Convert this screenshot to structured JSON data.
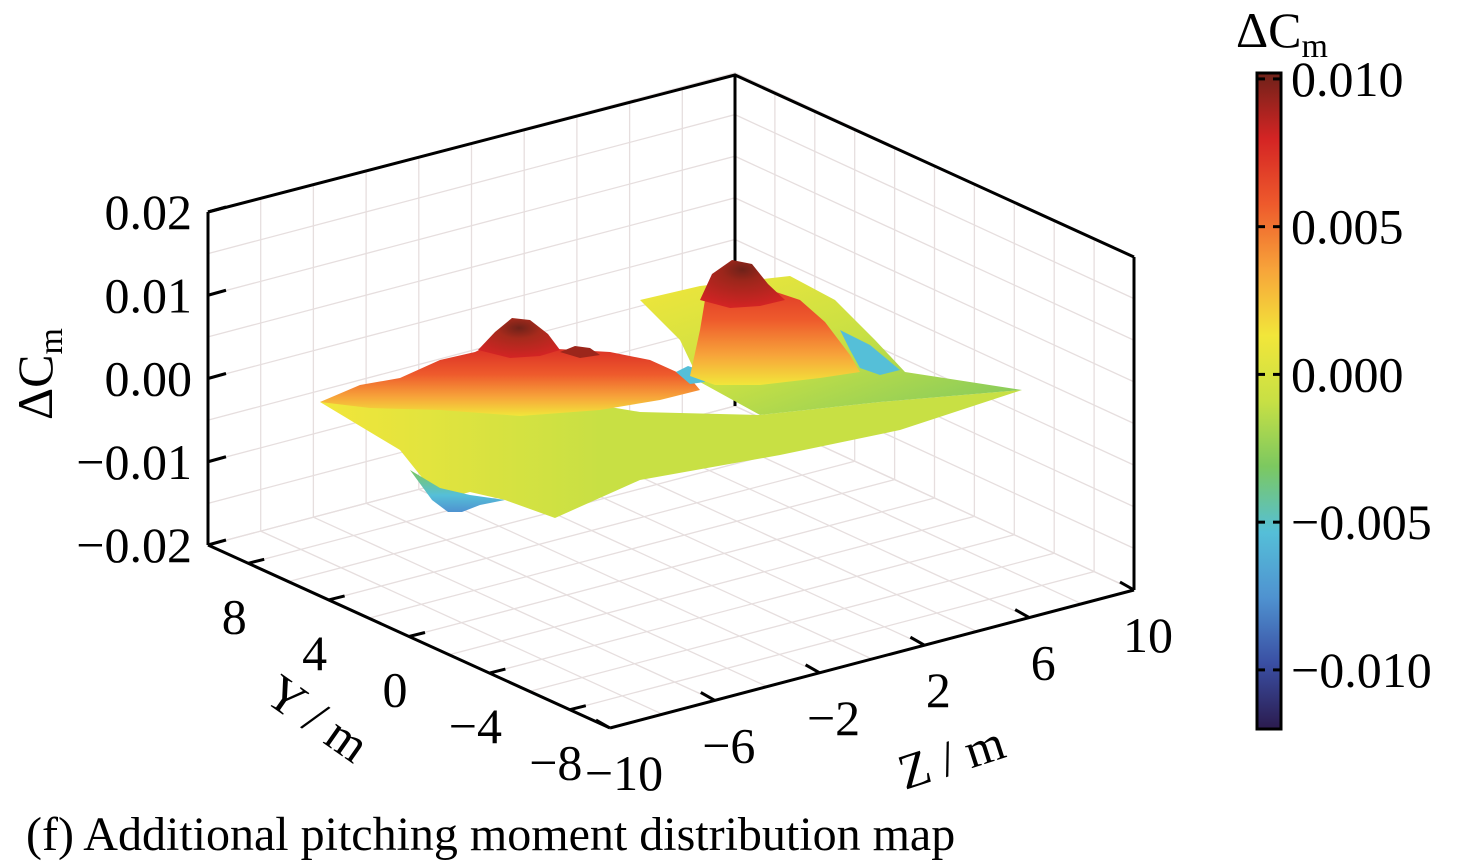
{
  "chart_data": {
    "type": "surface3d",
    "caption": "(f) Additional pitching moment distribution map",
    "z_axis": {
      "title_symbol": "ΔC",
      "title_subscript": "m",
      "ticks": [
        0.02,
        0.01,
        0.0,
        -0.01,
        -0.02
      ],
      "tick_labels": [
        "0.02",
        "0.01",
        "0.00",
        "−0.01",
        "−0.02"
      ],
      "range": [
        -0.02,
        0.02
      ]
    },
    "y_axis": {
      "title": "Y / m",
      "ticks": [
        8,
        4,
        0,
        -4,
        -8
      ],
      "tick_labels": [
        "8",
        "4",
        "0",
        "−4",
        "−8"
      ],
      "range": [
        -10,
        10
      ]
    },
    "x_axis": {
      "title": "Z / m",
      "ticks": [
        -10,
        -6,
        -2,
        2,
        6,
        10
      ],
      "tick_labels": [
        "−10",
        "−6",
        "−2",
        "2",
        "6",
        "10"
      ],
      "range": [
        -10,
        10
      ]
    },
    "colorbar": {
      "title_symbol": "ΔC",
      "title_subscript": "m",
      "range": [
        -0.012,
        0.0102
      ],
      "ticks": [
        0.01,
        0.005,
        0.0,
        -0.005,
        -0.01
      ],
      "tick_labels": [
        "0.010",
        "0.005",
        "0.000",
        "−0.005",
        "−0.010"
      ]
    },
    "colormap": [
      "#2b1b4e",
      "#3a4fa3",
      "#4f92d0",
      "#55bfd8",
      "#7cc860",
      "#c8e044",
      "#f2e63a",
      "#f7a43a",
      "#ee5a2c",
      "#d42424",
      "#6e2219"
    ],
    "surface_samples": [
      {
        "y": 9,
        "z": -10,
        "value": 0.0005
      },
      {
        "y": 6,
        "z": -6,
        "value": 0.008
      },
      {
        "y": 5,
        "z": -4,
        "value": 0.006
      },
      {
        "y": 4,
        "z": 2,
        "value": 0.01
      },
      {
        "y": 0,
        "z": 4,
        "value": 0.008
      },
      {
        "y": 2,
        "z": -2,
        "value": -0.002
      },
      {
        "y": -4,
        "z": -8,
        "value": -0.007
      },
      {
        "y": -8,
        "z": 8,
        "value": 0.0
      },
      {
        "y": 0,
        "z": 10,
        "value": 0.0005
      },
      {
        "y": -6,
        "z": 6,
        "value": -0.004
      }
    ],
    "grid": true
  }
}
